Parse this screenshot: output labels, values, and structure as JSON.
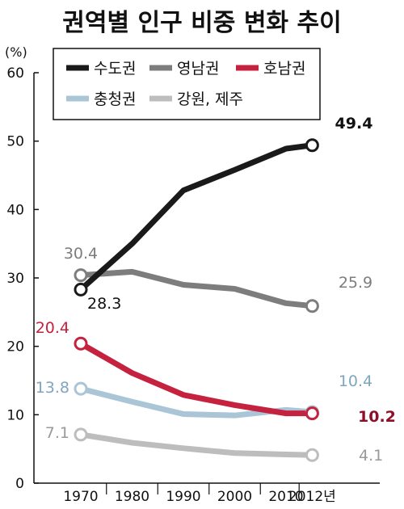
{
  "chart_data": {
    "type": "line",
    "title": "권역별 인구 비중 변화 추이",
    "unit_label": "(%)",
    "x": [
      1970,
      1980,
      1990,
      2000,
      2010,
      2012
    ],
    "x_tick_labels": [
      "1970",
      "1980",
      "1990",
      "2000",
      "2010",
      "2012년"
    ],
    "ylim": [
      0,
      60
    ],
    "y_ticks": [
      0,
      10,
      20,
      30,
      40,
      50,
      60
    ],
    "grid": false,
    "legend_position": "top",
    "series": [
      {
        "name": "수도권",
        "color": "#1a1a1a",
        "values": [
          28.3,
          35.0,
          42.8,
          45.8,
          48.9,
          49.4
        ],
        "first_label": "28.3",
        "last_label": "49.4"
      },
      {
        "name": "영남권",
        "color": "#7d7d7d",
        "values": [
          30.4,
          30.9,
          29.0,
          28.4,
          26.3,
          25.9
        ],
        "first_label": "30.4",
        "last_label": "25.9"
      },
      {
        "name": "호남권",
        "color": "#c4223e",
        "values": [
          20.4,
          16.1,
          12.9,
          11.4,
          10.2,
          10.2
        ],
        "first_label": "20.4",
        "last_label": "10.2"
      },
      {
        "name": "충청권",
        "color": "#a9c5d6",
        "values": [
          13.8,
          11.9,
          10.1,
          9.9,
          10.7,
          10.4
        ],
        "first_label": "13.8",
        "last_label": "10.4"
      },
      {
        "name": "강원, 제주",
        "color": "#bdbdbd",
        "values": [
          7.1,
          5.9,
          5.1,
          4.4,
          4.2,
          4.1
        ],
        "first_label": "7.1",
        "last_label": "4.1"
      }
    ]
  }
}
